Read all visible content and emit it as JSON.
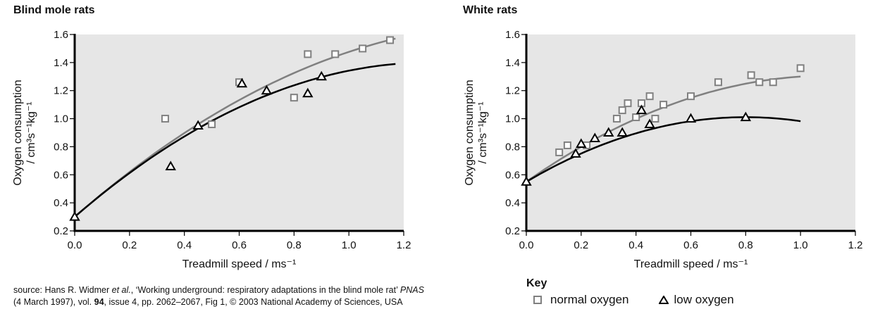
{
  "chart_data": [
    {
      "type": "scatter",
      "title": "Blind mole rats",
      "xlabel": "Treadmill speed / ms⁻¹",
      "ylabel_line1": "Oxygen consumption",
      "ylabel_line2": "/ cm³s⁻¹kg⁻¹",
      "xlim": [
        0.0,
        1.2
      ],
      "ylim": [
        0.2,
        1.6
      ],
      "xticks": [
        "0.0",
        "0.2",
        "0.4",
        "0.6",
        "0.8",
        "1.0",
        "1.2"
      ],
      "yticks": [
        "0.2",
        "0.4",
        "0.6",
        "0.8",
        "1.0",
        "1.2",
        "1.4",
        "1.6"
      ],
      "grid": false,
      "background": "#e6e6e6",
      "series": [
        {
          "name": "normal oxygen",
          "marker": "square",
          "color": "#808080",
          "points": [
            [
              0.33,
              1.0
            ],
            [
              0.5,
              0.96
            ],
            [
              0.6,
              1.26
            ],
            [
              0.8,
              1.15
            ],
            [
              0.85,
              1.46
            ],
            [
              0.95,
              1.46
            ],
            [
              1.05,
              1.5
            ],
            [
              1.15,
              1.56
            ]
          ],
          "fit_curve": {
            "type": "quadratic",
            "coefficients": [
              0.3,
              1.705,
              -0.529
            ],
            "x_range": [
              0.0,
              1.17
            ]
          }
        },
        {
          "name": "low oxygen",
          "marker": "triangle",
          "color": "#000000",
          "points": [
            [
              0.0,
              0.3
            ],
            [
              0.35,
              0.66
            ],
            [
              0.45,
              0.95
            ],
            [
              0.61,
              1.25
            ],
            [
              0.7,
              1.2
            ],
            [
              0.85,
              1.18
            ],
            [
              0.9,
              1.3
            ]
          ],
          "fit_curve": {
            "type": "quadratic",
            "coefficients": [
              0.3,
              1.693,
              -0.651
            ],
            "x_range": [
              0.0,
              1.17
            ]
          }
        }
      ]
    },
    {
      "type": "scatter",
      "title": "White rats",
      "xlabel": "Treadmill speed / ms⁻¹",
      "ylabel_line1": "Oxygen consumption",
      "ylabel_line2": "/ cm³s⁻¹kg⁻¹",
      "xlim": [
        0.0,
        1.2
      ],
      "ylim": [
        0.2,
        1.6
      ],
      "xticks": [
        "0.0",
        "0.2",
        "0.4",
        "0.6",
        "0.8",
        "1.0",
        "1.2"
      ],
      "yticks": [
        "0.2",
        "0.4",
        "0.6",
        "0.8",
        "1.0",
        "1.2",
        "1.4",
        "1.6"
      ],
      "grid": false,
      "background": "#e6e6e6",
      "series": [
        {
          "name": "normal oxygen",
          "marker": "square",
          "color": "#808080",
          "points": [
            [
              0.12,
              0.76
            ],
            [
              0.15,
              0.81
            ],
            [
              0.22,
              0.81
            ],
            [
              0.33,
              1.0
            ],
            [
              0.35,
              1.06
            ],
            [
              0.37,
              1.11
            ],
            [
              0.4,
              1.01
            ],
            [
              0.42,
              1.11
            ],
            [
              0.45,
              1.16
            ],
            [
              0.47,
              1.0
            ],
            [
              0.5,
              1.1
            ],
            [
              0.6,
              1.16
            ],
            [
              0.7,
              1.26
            ],
            [
              0.82,
              1.31
            ],
            [
              0.85,
              1.26
            ],
            [
              0.9,
              1.26
            ],
            [
              1.0,
              1.36
            ]
          ],
          "fit_curve": {
            "type": "quadratic",
            "coefficients": [
              0.55,
              1.37,
              -0.62
            ],
            "x_range": [
              0.0,
              1.0
            ]
          }
        },
        {
          "name": "low oxygen",
          "marker": "triangle",
          "color": "#000000",
          "points": [
            [
              0.0,
              0.55
            ],
            [
              0.18,
              0.75
            ],
            [
              0.2,
              0.82
            ],
            [
              0.25,
              0.86
            ],
            [
              0.3,
              0.9
            ],
            [
              0.35,
              0.9
            ],
            [
              0.42,
              1.06
            ],
            [
              0.45,
              0.96
            ],
            [
              0.6,
              1.0
            ],
            [
              0.8,
              1.01
            ]
          ],
          "fit_curve": {
            "type": "quadratic",
            "coefficients": [
              0.55,
              1.152,
              -0.72
            ],
            "x_range": [
              0.0,
              1.0
            ]
          }
        }
      ]
    }
  ],
  "legend": {
    "title": "Key",
    "placement": "bottom-right",
    "items": [
      {
        "label": "normal oxygen",
        "marker": "square"
      },
      {
        "label": "low oxygen",
        "marker": "triangle"
      }
    ]
  },
  "source": {
    "prefix": "source: Hans R. Widmer ",
    "etal": "et al.",
    "middle": ", ‘Working underground: respiratory adaptations in the blind mole rat’ ",
    "journal": "PNAS",
    "line2_a": "(4 March 1997), vol. ",
    "volume": "94",
    "line2_b": ", issue 4, pp. 2062–2067, Fig 1, © 2003 National Academy of Sciences, USA"
  }
}
